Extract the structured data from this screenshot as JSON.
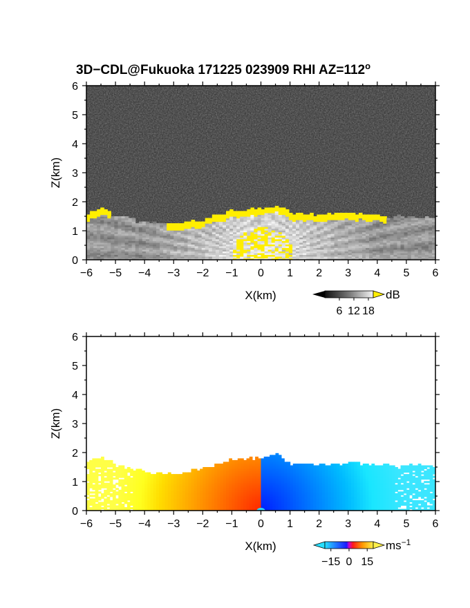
{
  "title": "3D−CDL@Fukuoka 171225 023909 RHI AZ=112",
  "title_superscript": "o",
  "chart_data": [
    {
      "type": "heatmap",
      "name": "reflectivity",
      "xlabel": "X(km)",
      "ylabel": "Z(km)",
      "xlim": [
        -6,
        6
      ],
      "ylim": [
        0,
        6
      ],
      "xticks": [
        "−6",
        "−5",
        "−4",
        "−3",
        "−2",
        "−1",
        "0",
        "1",
        "2",
        "3",
        "4",
        "5",
        "6"
      ],
      "yticks": [
        "0",
        "1",
        "2",
        "3",
        "4",
        "5",
        "6"
      ],
      "colorbar": {
        "label": "dB",
        "ticks": [
          "6",
          "12",
          "18"
        ],
        "tick_values": [
          6,
          12,
          18
        ],
        "range": [
          0,
          20
        ]
      },
      "echo_top_km": [
        [
          -6,
          1.55
        ],
        [
          -5.5,
          1.75
        ],
        [
          -5,
          1.5
        ],
        [
          -4,
          1.25
        ],
        [
          -3,
          1.2
        ],
        [
          -2,
          1.35
        ],
        [
          -1,
          1.65
        ],
        [
          0,
          1.75
        ],
        [
          0.6,
          1.85
        ],
        [
          1,
          1.55
        ],
        [
          2,
          1.55
        ],
        [
          3,
          1.6
        ],
        [
          4,
          1.5
        ],
        [
          5,
          1.45
        ],
        [
          6,
          1.45
        ]
      ],
      "colors": {
        "background": "#2e2e2e",
        "echo_low": "#8a8a8a",
        "echo_high": "#f0f0f0",
        "saturated": "#ffee00"
      }
    },
    {
      "type": "heatmap",
      "name": "doppler_velocity",
      "xlabel": "X(km)",
      "ylabel": "Z(km)",
      "xlim": [
        -6,
        6
      ],
      "ylim": [
        0,
        6
      ],
      "xticks": [
        "−6",
        "−5",
        "−4",
        "−3",
        "−2",
        "−1",
        "0",
        "1",
        "2",
        "3",
        "4",
        "5",
        "6"
      ],
      "yticks": [
        "0",
        "1",
        "2",
        "3",
        "4",
        "5",
        "6"
      ],
      "colorbar": {
        "label": "ms",
        "label_superscript": "−1",
        "ticks": [
          "−15",
          "0",
          "15"
        ],
        "tick_values": [
          -15,
          0,
          15
        ],
        "range": [
          -20,
          20
        ]
      },
      "echo_top_km": [
        [
          -6,
          1.75
        ],
        [
          -5.5,
          1.8
        ],
        [
          -5,
          1.6
        ],
        [
          -4,
          1.3
        ],
        [
          -3,
          1.25
        ],
        [
          -2,
          1.4
        ],
        [
          -1,
          1.7
        ],
        [
          0,
          1.8
        ],
        [
          0.6,
          1.9
        ],
        [
          1,
          1.6
        ],
        [
          2,
          1.55
        ],
        [
          3,
          1.6
        ],
        [
          4,
          1.55
        ],
        [
          5,
          1.55
        ],
        [
          6,
          1.55
        ]
      ],
      "velocity_pattern": {
        "negative_side_ms": 12,
        "positive_side_ms": -12,
        "near_radar_ms": 18
      },
      "colors": {
        "background": "#ffffff"
      }
    }
  ]
}
